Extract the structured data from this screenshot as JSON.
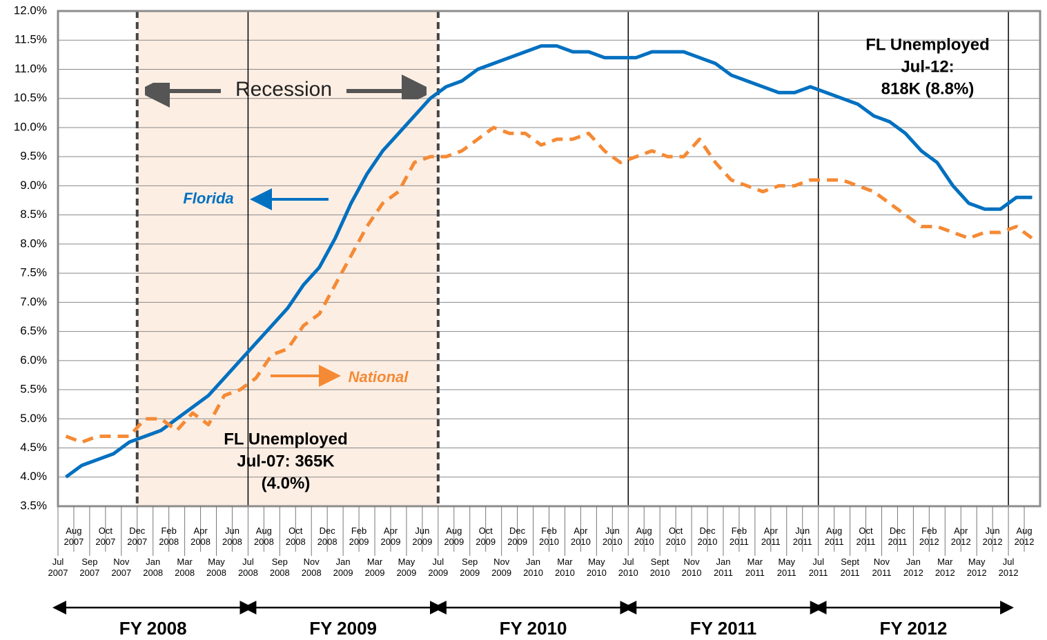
{
  "chart_data": {
    "type": "line",
    "categories": [
      "Jul 2007",
      "Aug 2007",
      "Sep 2007",
      "Oct 2007",
      "Nov 2007",
      "Dec 2007",
      "Jan 2008",
      "Feb 2008",
      "Mar 2008",
      "Apr 2008",
      "May 2008",
      "Jun 2008",
      "Jul 2008",
      "Aug 2008",
      "Sep 2008",
      "Oct 2008",
      "Nov 2008",
      "Dec 2008",
      "Jan 2009",
      "Feb 2009",
      "Mar 2009",
      "Apr 2009",
      "May 2009",
      "Jun 2009",
      "Jul 2009",
      "Aug 2009",
      "Sep 2009",
      "Oct 2009",
      "Nov 2009",
      "Dec 2009",
      "Jan 2010",
      "Feb 2010",
      "Mar 2010",
      "Apr 2010",
      "May 2010",
      "Jun 2010",
      "Jul 2010",
      "Aug 2010",
      "Sept 2010",
      "Oct 2010",
      "Nov 2010",
      "Dec 2010",
      "Jan 2011",
      "Feb 2011",
      "Mar 2011",
      "Apr 2011",
      "May 2011",
      "Jun 2011",
      "Jul 2011",
      "Aug 2011",
      "Sept 2011",
      "Oct 2011",
      "Nov 2011",
      "Dec 2011",
      "Jan 2012",
      "Feb 2012",
      "Mar 2012",
      "Apr 2012",
      "May 2012",
      "Jun 2012",
      "Jul 2012",
      "Aug 2012"
    ],
    "series": [
      {
        "name": "Florida",
        "color": "#0070c0",
        "dashed": false,
        "values": [
          4.0,
          4.2,
          4.3,
          4.4,
          4.6,
          4.7,
          4.8,
          5.0,
          5.2,
          5.4,
          5.7,
          6.0,
          6.3,
          6.6,
          6.9,
          7.3,
          7.6,
          8.1,
          8.7,
          9.2,
          9.6,
          9.9,
          10.2,
          10.5,
          10.7,
          10.8,
          11.0,
          11.1,
          11.2,
          11.3,
          11.4,
          11.4,
          11.3,
          11.3,
          11.2,
          11.2,
          11.2,
          11.3,
          11.3,
          11.3,
          11.2,
          11.1,
          10.9,
          10.8,
          10.7,
          10.6,
          10.6,
          10.7,
          10.6,
          10.5,
          10.4,
          10.2,
          10.1,
          9.9,
          9.6,
          9.4,
          9.0,
          8.7,
          8.6,
          8.6,
          8.8,
          8.8
        ]
      },
      {
        "name": "National",
        "color": "#f58a35",
        "dashed": true,
        "values": [
          4.7,
          4.6,
          4.7,
          4.7,
          4.7,
          5.0,
          5.0,
          4.8,
          5.1,
          4.9,
          5.4,
          5.5,
          5.7,
          6.1,
          6.2,
          6.6,
          6.8,
          7.3,
          7.8,
          8.3,
          8.7,
          8.9,
          9.4,
          9.5,
          9.5,
          9.6,
          9.8,
          10.0,
          9.9,
          9.9,
          9.7,
          9.8,
          9.8,
          9.9,
          9.6,
          9.4,
          9.5,
          9.6,
          9.5,
          9.5,
          9.8,
          9.4,
          9.1,
          9.0,
          8.9,
          9.0,
          9.0,
          9.1,
          9.1,
          9.1,
          9.0,
          8.9,
          8.7,
          8.5,
          8.3,
          8.3,
          8.2,
          8.1,
          8.2,
          8.2,
          8.3,
          8.1
        ]
      }
    ],
    "ylim": [
      3.5,
      12.0
    ],
    "yticks": [
      {
        "value": 3.5,
        "label": "3.5%"
      },
      {
        "value": 4.0,
        "label": "4.0%"
      },
      {
        "value": 4.5,
        "label": "4.5%"
      },
      {
        "value": 5.0,
        "label": "5.0%"
      },
      {
        "value": 5.5,
        "label": "5.5%"
      },
      {
        "value": 6.0,
        "label": "6.0%"
      },
      {
        "value": 6.5,
        "label": "6.5%"
      },
      {
        "value": 7.0,
        "label": "7.0%"
      },
      {
        "value": 7.5,
        "label": "7.5%"
      },
      {
        "value": 8.0,
        "label": "8.0%"
      },
      {
        "value": 8.5,
        "label": "8.5%"
      },
      {
        "value": 9.0,
        "label": "9.0%"
      },
      {
        "value": 9.5,
        "label": "9.5%"
      },
      {
        "value": 10.0,
        "label": "10.0%"
      },
      {
        "value": 10.5,
        "label": "10.5%"
      },
      {
        "value": 11.0,
        "label": "11.0%"
      },
      {
        "value": 11.5,
        "label": "11.5%"
      },
      {
        "value": 12.0,
        "label": "12.0%"
      }
    ],
    "grid": true,
    "recession_label": "Recession",
    "annotations": [
      {
        "lines": [
          "FL Unemployed",
          "Jul-07: 365K",
          "(4.0%)"
        ]
      },
      {
        "lines": [
          "FL Unemployed",
          "Jul-12:",
          "818K (8.8%)"
        ]
      }
    ],
    "fiscal_years": [
      "FY 2008",
      "FY 2009",
      "FY 2010",
      "FY 2011",
      "FY 2012"
    ]
  }
}
